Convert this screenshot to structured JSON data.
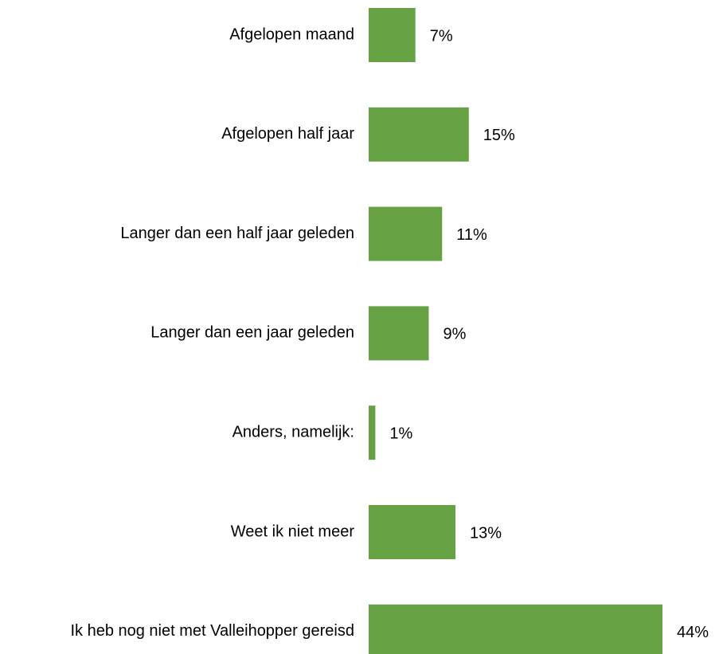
{
  "chart_data": {
    "type": "barh",
    "categories": [
      "Afgelopen maand",
      "Afgelopen half jaar",
      "Langer dan een half jaar geleden",
      "Langer dan een jaar geleden",
      "Anders, namelijk:",
      "Weet ik niet meer",
      "Ik heb nog niet met Valleihopper gereisd"
    ],
    "values": [
      7,
      15,
      11,
      9,
      1,
      13,
      44
    ],
    "value_labels": [
      "7%",
      "15%",
      "11%",
      "9%",
      "1%",
      "13%",
      "44%"
    ],
    "color": "#66a244"
  }
}
